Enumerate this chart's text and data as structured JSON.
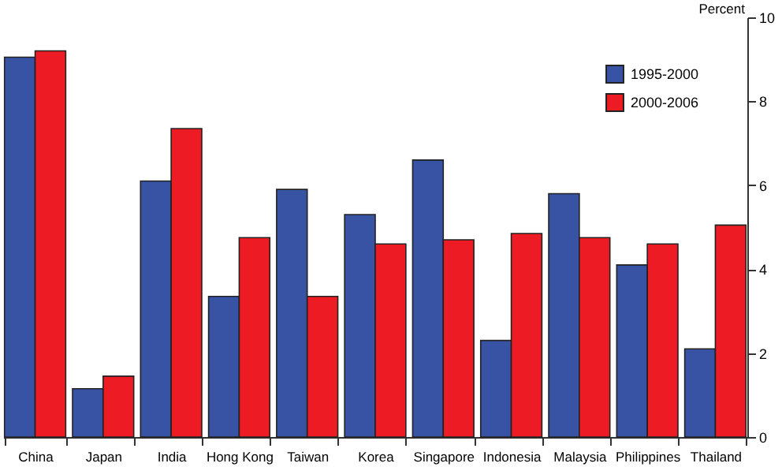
{
  "chart_data": {
    "type": "bar",
    "ylabel": "Percent",
    "categories": [
      "China",
      "Japan",
      "India",
      "Hong Kong",
      "Taiwan",
      "Korea",
      "Singapore",
      "Indonesia",
      "Malaysia",
      "Philippines",
      "Thailand"
    ],
    "series": [
      {
        "name": "1995-2000",
        "color": "#3953a4",
        "values": [
          9.05,
          1.15,
          6.1,
          3.35,
          5.9,
          5.3,
          6.6,
          2.3,
          5.8,
          4.1,
          2.1
        ]
      },
      {
        "name": "2000-2006",
        "color": "#ed1c24",
        "values": [
          9.2,
          1.45,
          7.35,
          4.75,
          3.35,
          4.6,
          4.7,
          4.85,
          4.75,
          4.6,
          5.05
        ]
      }
    ],
    "ylim": [
      0,
      10
    ],
    "yticks": [
      0,
      2,
      4,
      6,
      8,
      10
    ],
    "grid": false,
    "legend": "top right"
  }
}
